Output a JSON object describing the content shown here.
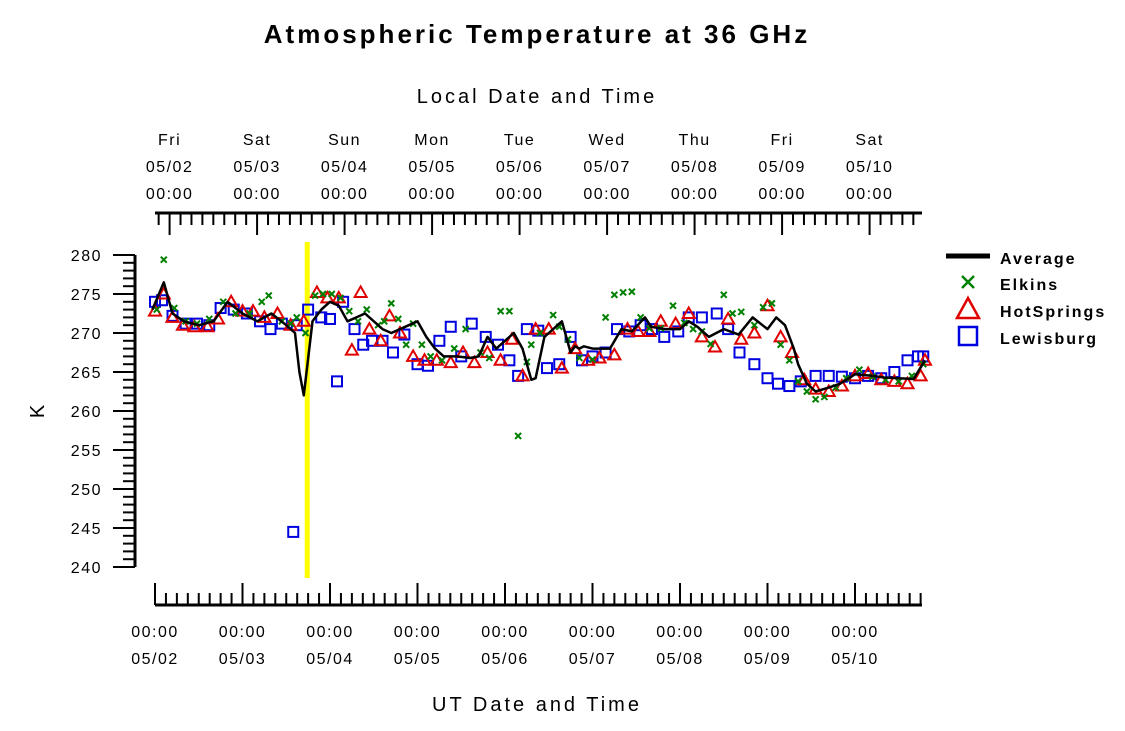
{
  "chart_data": {
    "type": "scatter",
    "title": "Atmospheric Temperature at 36 GHz",
    "top_axis_label": "Local Date and Time",
    "xlabel": "UT Date and Time",
    "ylabel": "K",
    "ylim": [
      240,
      280
    ],
    "y_ticks": [
      {
        "value": 280,
        "label": "280"
      },
      {
        "value": 275,
        "label": "275"
      },
      {
        "value": 270,
        "label": "270"
      },
      {
        "value": 265,
        "label": "265"
      },
      {
        "value": 260,
        "label": "260"
      },
      {
        "value": 255,
        "label": "255"
      },
      {
        "value": 250,
        "label": "250"
      },
      {
        "value": 245,
        "label": "245"
      },
      {
        "value": 240,
        "label": "240"
      }
    ],
    "xlim_days": [
      0,
      8.8
    ],
    "x_minor_tick_step_hours": 3,
    "bottom_ticks": [
      {
        "x": 0,
        "time": "00:00",
        "date": "05/02"
      },
      {
        "x": 1,
        "time": "00:00",
        "date": "05/03"
      },
      {
        "x": 2,
        "time": "00:00",
        "date": "05/04"
      },
      {
        "x": 3,
        "time": "00:00",
        "date": "05/05"
      },
      {
        "x": 4,
        "time": "00:00",
        "date": "05/06"
      },
      {
        "x": 5,
        "time": "00:00",
        "date": "05/07"
      },
      {
        "x": 6,
        "time": "00:00",
        "date": "05/08"
      },
      {
        "x": 7,
        "time": "00:00",
        "date": "05/09"
      },
      {
        "x": 8,
        "time": "00:00",
        "date": "05/10"
      }
    ],
    "top_ticks": [
      {
        "x": 0.1667,
        "day": "Fri",
        "date": "05/02",
        "time": "00:00"
      },
      {
        "x": 1.1667,
        "day": "Sat",
        "date": "05/03",
        "time": "00:00"
      },
      {
        "x": 2.1667,
        "day": "Sun",
        "date": "05/04",
        "time": "00:00"
      },
      {
        "x": 3.1667,
        "day": "Mon",
        "date": "05/05",
        "time": "00:00"
      },
      {
        "x": 4.1667,
        "day": "Tue",
        "date": "05/06",
        "time": "00:00"
      },
      {
        "x": 5.1667,
        "day": "Wed",
        "date": "05/07",
        "time": "00:00"
      },
      {
        "x": 6.1667,
        "day": "Thu",
        "date": "05/08",
        "time": "00:00"
      },
      {
        "x": 7.1667,
        "day": "Fri",
        "date": "05/09",
        "time": "00:00"
      },
      {
        "x": 8.1667,
        "day": "Sat",
        "date": "05/10",
        "time": "00:00"
      }
    ],
    "marker_line_x": 1.74,
    "marker_line_color": "#ffff00",
    "legend_position": "right",
    "series": [
      {
        "name": "Average",
        "marker": "line",
        "color": "#000000",
        "x": [
          -0.03,
          0.1,
          0.2,
          0.33,
          0.5,
          0.67,
          0.83,
          1.0,
          1.17,
          1.33,
          1.5,
          1.6,
          1.65,
          1.7,
          1.8,
          1.9,
          2.0,
          2.1,
          2.2,
          2.3,
          2.4,
          2.5,
          2.6,
          2.7,
          2.9,
          3.0,
          3.1,
          3.2,
          3.3,
          3.45,
          3.6,
          3.7,
          3.8,
          3.9,
          4.0,
          4.1,
          4.2,
          4.3,
          4.35,
          4.45,
          4.5,
          4.65,
          4.75,
          4.8,
          4.85,
          4.9,
          5.0,
          5.2,
          5.33,
          5.45,
          5.6,
          5.67,
          5.83,
          6.0,
          6.1,
          6.2,
          6.33,
          6.5,
          6.67,
          6.83,
          7.0,
          7.1,
          7.2,
          7.3,
          7.35,
          7.45,
          7.55,
          7.7,
          7.83,
          8.0,
          8.2,
          8.33,
          8.5,
          8.67,
          8.8
        ],
        "y": [
          273,
          276.5,
          272.5,
          271.5,
          271,
          271.5,
          274,
          272.5,
          271.5,
          272.5,
          271,
          270,
          265,
          262,
          271.5,
          273,
          274,
          273.5,
          271.5,
          272,
          272.5,
          271.5,
          270.5,
          270,
          271,
          271.5,
          269.5,
          268,
          267,
          267,
          266.8,
          267,
          269.5,
          268,
          269,
          270,
          268,
          264,
          264.2,
          269.5,
          270,
          271.5,
          267.5,
          268.3,
          268,
          268.3,
          268,
          268,
          270.5,
          270.2,
          272,
          270.8,
          270.5,
          270.5,
          271.5,
          270.8,
          269.5,
          270.5,
          269.8,
          272,
          270.5,
          272,
          271,
          268,
          266,
          263.5,
          262.5,
          263,
          263.5,
          264.7,
          264.5,
          264.3,
          264.2,
          264.1,
          266.5
        ]
      },
      {
        "name": "Elkins",
        "marker": "x",
        "color": "#008000",
        "x": [
          0.02,
          0.1,
          0.22,
          0.35,
          0.48,
          0.62,
          0.78,
          0.92,
          1.08,
          1.22,
          1.3,
          1.45,
          1.55,
          1.62,
          1.72,
          1.83,
          1.92,
          2.02,
          2.12,
          2.22,
          2.32,
          2.42,
          2.55,
          2.62,
          2.7,
          2.78,
          2.87,
          2.95,
          3.05,
          3.15,
          3.28,
          3.42,
          3.55,
          3.72,
          3.82,
          3.95,
          4.05,
          4.15,
          4.25,
          4.3,
          4.4,
          4.55,
          4.62,
          4.72,
          4.85,
          5.0,
          5.15,
          5.25,
          5.35,
          5.45,
          5.55,
          5.65,
          5.78,
          5.92,
          6.05,
          6.15,
          6.25,
          6.35,
          6.5,
          6.6,
          6.7,
          6.85,
          6.95,
          7.05,
          7.15,
          7.25,
          7.35,
          7.45,
          7.55,
          7.65,
          7.78,
          7.9,
          8.05,
          8.2,
          8.35,
          8.5,
          8.65,
          8.78
        ],
        "y": [
          273,
          279.4,
          273.2,
          271.5,
          271.2,
          271.8,
          274,
          272.5,
          272.5,
          274,
          274.8,
          271.5,
          271.2,
          272,
          270,
          274.8,
          275,
          275,
          274.5,
          272.8,
          271.5,
          273,
          271,
          271.5,
          273.8,
          271.8,
          268.5,
          271.2,
          268.5,
          267,
          266.5,
          268,
          270.5,
          267.5,
          266.8,
          272.8,
          272.8,
          256.8,
          266.3,
          268.5,
          270,
          272.3,
          270.8,
          269.2,
          266.8,
          266.6,
          272,
          274.9,
          275.2,
          275.3,
          272,
          270.6,
          270.6,
          273.5,
          271.3,
          270.5,
          270.2,
          268.6,
          274.9,
          272.5,
          272.7,
          271,
          273.3,
          273.8,
          268.5,
          266.5,
          263.8,
          262.5,
          261.5,
          261.8,
          263,
          264.2,
          265.3,
          264.4,
          264,
          263.8,
          264.5,
          266
        ]
      },
      {
        "name": "HotSprings",
        "marker": "triangle",
        "color": "#e00000",
        "x": [
          0.0,
          0.1,
          0.2,
          0.32,
          0.45,
          0.6,
          0.72,
          0.87,
          1.0,
          1.12,
          1.25,
          1.4,
          1.55,
          1.7,
          1.85,
          1.97,
          2.1,
          2.25,
          2.35,
          2.45,
          2.58,
          2.68,
          2.8,
          2.95,
          3.08,
          3.22,
          3.38,
          3.52,
          3.65,
          3.8,
          3.95,
          4.08,
          4.2,
          4.35,
          4.5,
          4.65,
          4.8,
          4.95,
          5.08,
          5.25,
          5.4,
          5.52,
          5.65,
          5.78,
          5.95,
          6.1,
          6.25,
          6.4,
          6.55,
          6.7,
          6.85,
          7.0,
          7.15,
          7.28,
          7.42,
          7.55,
          7.7,
          7.85,
          8.0,
          8.15,
          8.3,
          8.45,
          8.6,
          8.75,
          8.8
        ],
        "y": [
          272.8,
          275,
          272,
          271,
          270.8,
          270.8,
          271.8,
          274,
          272.8,
          272.8,
          272,
          272.5,
          271,
          271.5,
          275.2,
          274.5,
          274.5,
          267.8,
          275.2,
          270.5,
          269,
          272.2,
          270,
          267,
          266.5,
          266.5,
          266.2,
          267.5,
          266.2,
          267.5,
          266.5,
          269.2,
          264.5,
          270.5,
          270.5,
          265.5,
          268,
          266.5,
          266.8,
          267.2,
          270.5,
          270.2,
          270.2,
          271.5,
          271.2,
          272.5,
          269.5,
          268.2,
          271.8,
          269.2,
          270,
          273.5,
          269.5,
          267.5,
          264,
          262.8,
          262.5,
          263.2,
          264.5,
          264.8,
          264,
          263.8,
          263.5,
          264.5,
          266.5
        ]
      },
      {
        "name": "Lewisburg",
        "marker": "square",
        "color": "#0000e0",
        "x": [
          0.0,
          0.08,
          0.2,
          0.35,
          0.48,
          0.62,
          0.75,
          0.9,
          1.05,
          1.2,
          1.32,
          1.45,
          1.58,
          1.62,
          1.75,
          1.9,
          2.0,
          2.08,
          2.15,
          2.28,
          2.38,
          2.48,
          2.6,
          2.72,
          2.85,
          3.0,
          3.12,
          3.25,
          3.38,
          3.5,
          3.62,
          3.78,
          3.92,
          4.05,
          4.15,
          4.25,
          4.38,
          4.48,
          4.62,
          4.75,
          4.88,
          5.0,
          5.15,
          5.28,
          5.42,
          5.55,
          5.68,
          5.82,
          5.98,
          6.1,
          6.25,
          6.42,
          6.55,
          6.68,
          6.85,
          7.0,
          7.12,
          7.25,
          7.38,
          7.55,
          7.7,
          7.85,
          8.0,
          8.15,
          8.3,
          8.45,
          8.6,
          8.72,
          8.78
        ],
        "y": [
          274,
          274.2,
          272.2,
          271.2,
          271.2,
          271,
          273.2,
          273,
          272.5,
          271.5,
          270.5,
          271.2,
          244.5,
          271,
          273,
          272,
          271.8,
          263.8,
          274,
          270.5,
          268.5,
          269,
          269,
          267.5,
          269.8,
          266,
          265.8,
          269,
          270.8,
          267,
          271.2,
          269.5,
          268.5,
          266.5,
          264.5,
          270.5,
          270.3,
          265.5,
          266,
          269.5,
          266.5,
          267,
          267.5,
          270.5,
          270.2,
          271,
          270.5,
          269.5,
          270.2,
          272,
          272,
          272.5,
          270.5,
          267.5,
          266,
          264.2,
          263.5,
          263.2,
          263.8,
          264.5,
          264.5,
          264.4,
          264.2,
          264.5,
          264.2,
          265,
          266.5,
          267,
          267
        ]
      }
    ]
  }
}
